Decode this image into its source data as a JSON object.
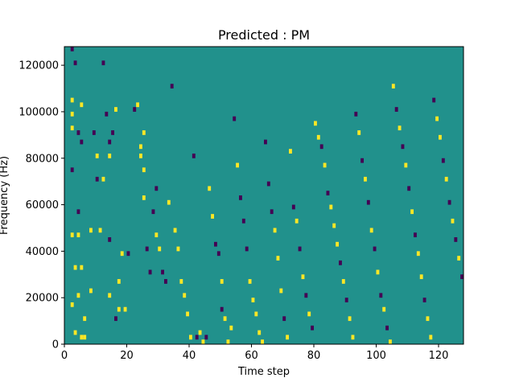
{
  "chart_data": {
    "type": "heatmap",
    "title": "Predicted : PM",
    "xlabel": "Time step",
    "ylabel": "Frequency (Hz)",
    "xlim": [
      0,
      128
    ],
    "ylim": [
      0,
      128000
    ],
    "x_ticks": [
      0,
      20,
      40,
      60,
      80,
      100,
      120
    ],
    "y_ticks": [
      0,
      20000,
      40000,
      60000,
      80000,
      100000,
      120000
    ],
    "x_tick_labels": [
      "0",
      "20",
      "40",
      "60",
      "80",
      "100",
      "120"
    ],
    "y_tick_labels": [
      "0",
      "20000",
      "40000",
      "60000",
      "80000",
      "100000",
      "120000"
    ],
    "grid": false,
    "legend": "none",
    "background_value": 0,
    "colors": {
      "low": "#440154",
      "mid": "#21918c",
      "high": "#fde725"
    },
    "cell_height": 2000,
    "cells": [
      [
        2,
        126000,
        -1
      ],
      [
        3,
        120000,
        -1
      ],
      [
        4,
        90000,
        -1
      ],
      [
        5,
        102000,
        1
      ],
      [
        5,
        86000,
        -1
      ],
      [
        2,
        104000,
        1
      ],
      [
        2,
        98000,
        1
      ],
      [
        2,
        92000,
        1
      ],
      [
        2,
        74000,
        -1
      ],
      [
        4,
        56000,
        -1
      ],
      [
        2,
        46000,
        1
      ],
      [
        4,
        46000,
        1
      ],
      [
        3,
        32000,
        1
      ],
      [
        5,
        32000,
        1
      ],
      [
        2,
        16000,
        1
      ],
      [
        4,
        20000,
        1
      ],
      [
        3,
        4000,
        1
      ],
      [
        5,
        2000,
        1
      ],
      [
        6,
        10000,
        1
      ],
      [
        6,
        2000,
        1
      ],
      [
        8,
        48000,
        1
      ],
      [
        8,
        22000,
        1
      ],
      [
        9,
        90000,
        -1
      ],
      [
        10,
        80000,
        1
      ],
      [
        10,
        70000,
        -1
      ],
      [
        11,
        48000,
        1
      ],
      [
        12,
        120000,
        -1
      ],
      [
        12,
        70000,
        1
      ],
      [
        13,
        98000,
        -1
      ],
      [
        14,
        86000,
        -1
      ],
      [
        14,
        80000,
        1
      ],
      [
        14,
        44000,
        -1
      ],
      [
        14,
        20000,
        1
      ],
      [
        15,
        90000,
        -1
      ],
      [
        16,
        100000,
        1
      ],
      [
        16,
        10000,
        -1
      ],
      [
        17,
        26000,
        1
      ],
      [
        17,
        14000,
        1
      ],
      [
        18,
        38000,
        1
      ],
      [
        19,
        14000,
        1
      ],
      [
        20,
        38000,
        -1
      ],
      [
        22,
        100000,
        -1
      ],
      [
        23,
        102000,
        1
      ],
      [
        24,
        84000,
        1
      ],
      [
        24,
        80000,
        1
      ],
      [
        25,
        90000,
        1
      ],
      [
        25,
        74000,
        1
      ],
      [
        25,
        62000,
        1
      ],
      [
        26,
        40000,
        -1
      ],
      [
        27,
        30000,
        -1
      ],
      [
        28,
        56000,
        -1
      ],
      [
        29,
        66000,
        -1
      ],
      [
        29,
        46000,
        1
      ],
      [
        30,
        40000,
        1
      ],
      [
        31,
        30000,
        -1
      ],
      [
        32,
        26000,
        -1
      ],
      [
        33,
        60000,
        1
      ],
      [
        34,
        110000,
        -1
      ],
      [
        35,
        48000,
        1
      ],
      [
        36,
        40000,
        1
      ],
      [
        37,
        26000,
        1
      ],
      [
        38,
        20000,
        1
      ],
      [
        39,
        12000,
        1
      ],
      [
        40,
        2000,
        1
      ],
      [
        41,
        80000,
        -1
      ],
      [
        42,
        2000,
        -1
      ],
      [
        43,
        4000,
        1
      ],
      [
        44,
        0,
        1
      ],
      [
        45,
        2000,
        -1
      ],
      [
        46,
        66000,
        1
      ],
      [
        47,
        54000,
        1
      ],
      [
        48,
        42000,
        -1
      ],
      [
        49,
        38000,
        -1
      ],
      [
        50,
        26000,
        1
      ],
      [
        50,
        14000,
        -1
      ],
      [
        51,
        10000,
        1
      ],
      [
        52,
        0,
        1
      ],
      [
        53,
        6000,
        1
      ],
      [
        54,
        96000,
        -1
      ],
      [
        55,
        76000,
        1
      ],
      [
        56,
        62000,
        -1
      ],
      [
        57,
        52000,
        -1
      ],
      [
        58,
        40000,
        -1
      ],
      [
        59,
        26000,
        1
      ],
      [
        60,
        18000,
        1
      ],
      [
        61,
        12000,
        1
      ],
      [
        62,
        4000,
        1
      ],
      [
        63,
        0,
        1
      ],
      [
        64,
        86000,
        -1
      ],
      [
        65,
        68000,
        -1
      ],
      [
        66,
        56000,
        -1
      ],
      [
        67,
        48000,
        1
      ],
      [
        68,
        36000,
        1
      ],
      [
        69,
        22000,
        1
      ],
      [
        70,
        10000,
        -1
      ],
      [
        71,
        2000,
        1
      ],
      [
        72,
        82000,
        1
      ],
      [
        73,
        58000,
        -1
      ],
      [
        74,
        52000,
        1
      ],
      [
        75,
        40000,
        -1
      ],
      [
        76,
        28000,
        1
      ],
      [
        77,
        20000,
        -1
      ],
      [
        78,
        12000,
        1
      ],
      [
        79,
        6000,
        -1
      ],
      [
        80,
        94000,
        1
      ],
      [
        81,
        88000,
        1
      ],
      [
        82,
        84000,
        -1
      ],
      [
        83,
        76000,
        1
      ],
      [
        84,
        64000,
        -1
      ],
      [
        85,
        58000,
        1
      ],
      [
        86,
        50000,
        1
      ],
      [
        87,
        42000,
        1
      ],
      [
        88,
        34000,
        -1
      ],
      [
        89,
        26000,
        1
      ],
      [
        90,
        18000,
        -1
      ],
      [
        91,
        10000,
        1
      ],
      [
        92,
        2000,
        1
      ],
      [
        93,
        98000,
        -1
      ],
      [
        94,
        90000,
        1
      ],
      [
        95,
        78000,
        -1
      ],
      [
        96,
        70000,
        1
      ],
      [
        97,
        60000,
        -1
      ],
      [
        98,
        48000,
        1
      ],
      [
        99,
        40000,
        -1
      ],
      [
        100,
        30000,
        1
      ],
      [
        101,
        20000,
        -1
      ],
      [
        102,
        14000,
        1
      ],
      [
        103,
        6000,
        -1
      ],
      [
        104,
        0,
        1
      ],
      [
        105,
        110000,
        1
      ],
      [
        106,
        100000,
        -1
      ],
      [
        107,
        92000,
        1
      ],
      [
        108,
        84000,
        -1
      ],
      [
        109,
        76000,
        1
      ],
      [
        110,
        66000,
        -1
      ],
      [
        111,
        56000,
        1
      ],
      [
        112,
        46000,
        -1
      ],
      [
        113,
        38000,
        1
      ],
      [
        114,
        28000,
        1
      ],
      [
        115,
        18000,
        -1
      ],
      [
        116,
        10000,
        1
      ],
      [
        117,
        2000,
        1
      ],
      [
        118,
        104000,
        -1
      ],
      [
        119,
        96000,
        1
      ],
      [
        120,
        88000,
        1
      ],
      [
        121,
        78000,
        -1
      ],
      [
        122,
        70000,
        1
      ],
      [
        123,
        60000,
        -1
      ],
      [
        124,
        52000,
        1
      ],
      [
        125,
        44000,
        -1
      ],
      [
        126,
        36000,
        1
      ],
      [
        127,
        28000,
        -1
      ]
    ]
  }
}
